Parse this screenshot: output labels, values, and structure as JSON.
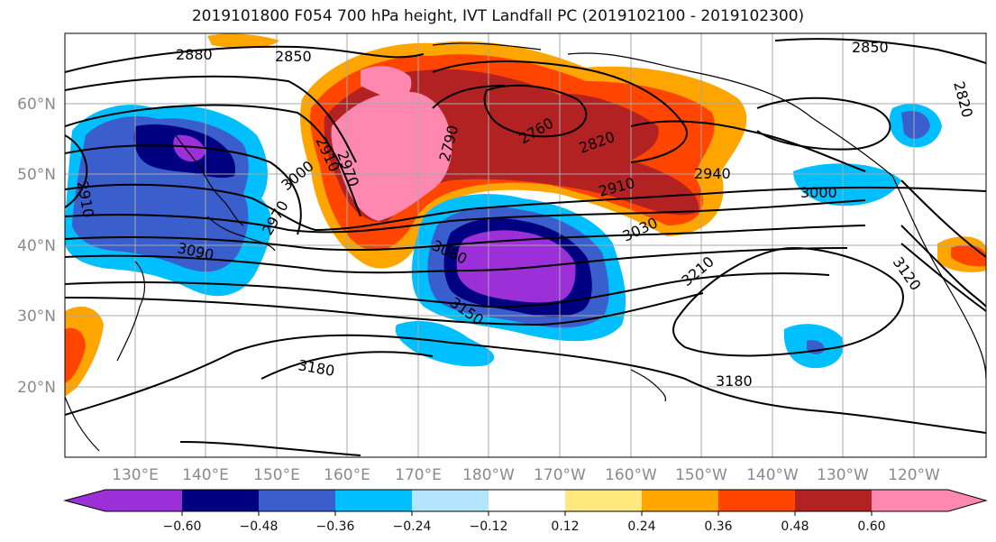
{
  "title": "2019101800 F054 700 hPa height, IVT Landfall PC (2019102100 - 2019102300)",
  "map": {
    "lon_ticks": [
      "130°E",
      "140°E",
      "150°E",
      "160°E",
      "170°E",
      "180°W",
      "170°W",
      "160°W",
      "150°W",
      "140°W",
      "130°W",
      "120°W"
    ],
    "lat_ticks": [
      "60°N",
      "50°N",
      "40°N",
      "30°N",
      "20°N"
    ],
    "contour_labels": [
      "2880",
      "2850",
      "2850",
      "2820",
      "2910",
      "2910",
      "2970",
      "3000",
      "2970",
      "2790",
      "2760",
      "2820",
      "2910",
      "2940",
      "3000",
      "3090",
      "3060",
      "3030",
      "3210",
      "3120",
      "3150",
      "3180",
      "3180"
    ]
  },
  "colorbar": {
    "ticks": [
      "−0.60",
      "−0.48",
      "−0.36",
      "−0.24",
      "−0.12",
      "0.12",
      "0.24",
      "0.36",
      "0.48",
      "0.60"
    ],
    "colors": [
      "#9b30d9",
      "#000080",
      "#3a5fcd",
      "#00bfff",
      "#b3e5ff",
      "#ffffff",
      "#ffe97f",
      "#ffa500",
      "#ff4500",
      "#b22222",
      "#ff88b0"
    ]
  }
}
